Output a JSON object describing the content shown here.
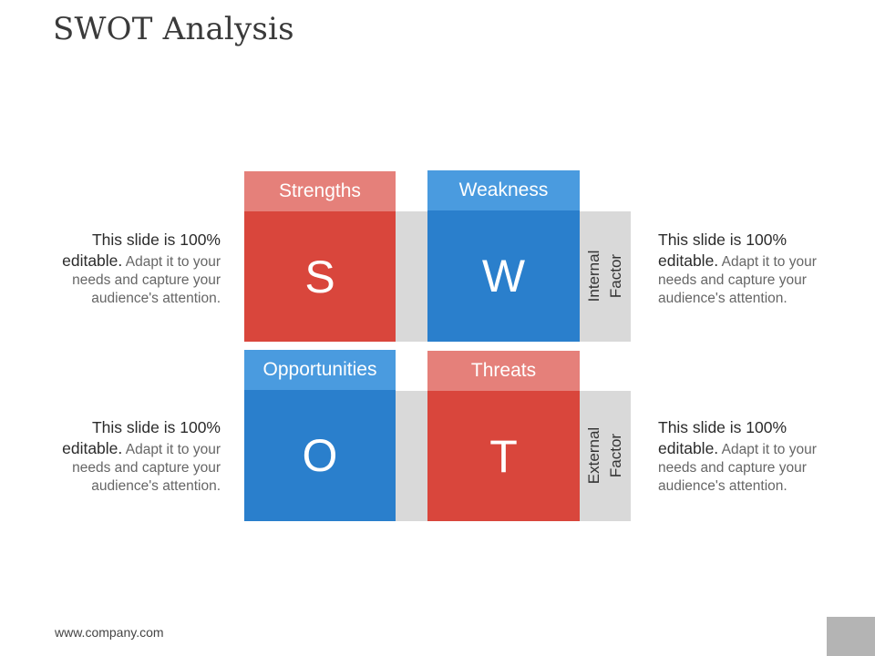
{
  "title": "SWOT Analysis",
  "colors": {
    "red": "#d9463c",
    "red_light": "#e5807a",
    "blue": "#2a7fcc",
    "blue_light": "#4a9bdf",
    "grey": "#d9d9d9"
  },
  "swot": {
    "strengths": {
      "label": "Strengths",
      "letter": "S"
    },
    "weakness": {
      "label": "Weakness",
      "letter": "W"
    },
    "opportunities": {
      "label": "Opportunities",
      "letter": "O"
    },
    "threats": {
      "label": "Threats",
      "letter": "T"
    }
  },
  "factors": {
    "internal": "Internal Factor",
    "external": "External Factor"
  },
  "descriptions": {
    "top_left": {
      "lead": "This slide is 100% editable.",
      "body": "Adapt it to your needs and capture your audience's attention."
    },
    "top_right": {
      "lead": "This slide is 100% editable.",
      "body": "Adapt it to your needs and capture your audience's attention."
    },
    "bottom_left": {
      "lead": "This slide is 100% editable.",
      "body": "Adapt it to your needs and capture your audience's attention."
    },
    "bottom_right": {
      "lead": "This slide is 100% editable.",
      "body": "Adapt it to your needs and capture your audience's attention."
    }
  },
  "footer": {
    "url": "www.company.com"
  }
}
